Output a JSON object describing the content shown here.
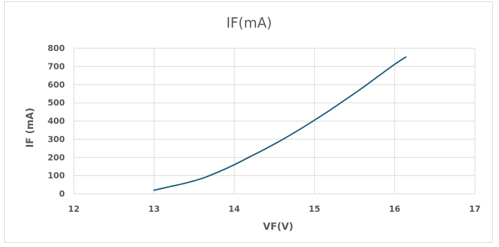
{
  "chart_data": {
    "type": "line",
    "title": "IF(mA)",
    "xlabel": "VF(V)",
    "ylabel": "IF (mA)",
    "xlim": [
      12,
      17
    ],
    "ylim": [
      0,
      800
    ],
    "x_ticks": [
      12,
      13,
      14,
      15,
      16,
      17
    ],
    "y_ticks": [
      0,
      100,
      200,
      300,
      400,
      500,
      600,
      700,
      800
    ],
    "grid": {
      "horizontal": true,
      "vertical": true
    },
    "legend": "none",
    "colors": {
      "line": "#1f5c7a",
      "grid": "#d9d9d9",
      "text": "#595959"
    },
    "series": [
      {
        "x": [
          13.0,
          13.2,
          13.4,
          13.6,
          13.8,
          14.0,
          14.2,
          14.4,
          14.6,
          14.8,
          15.0,
          15.2,
          15.4,
          15.6,
          15.8,
          16.0,
          16.14
        ],
        "values": [
          20,
          40,
          60,
          85,
          120,
          160,
          205,
          250,
          298,
          350,
          405,
          462,
          522,
          583,
          648,
          712,
          752
        ]
      }
    ]
  }
}
